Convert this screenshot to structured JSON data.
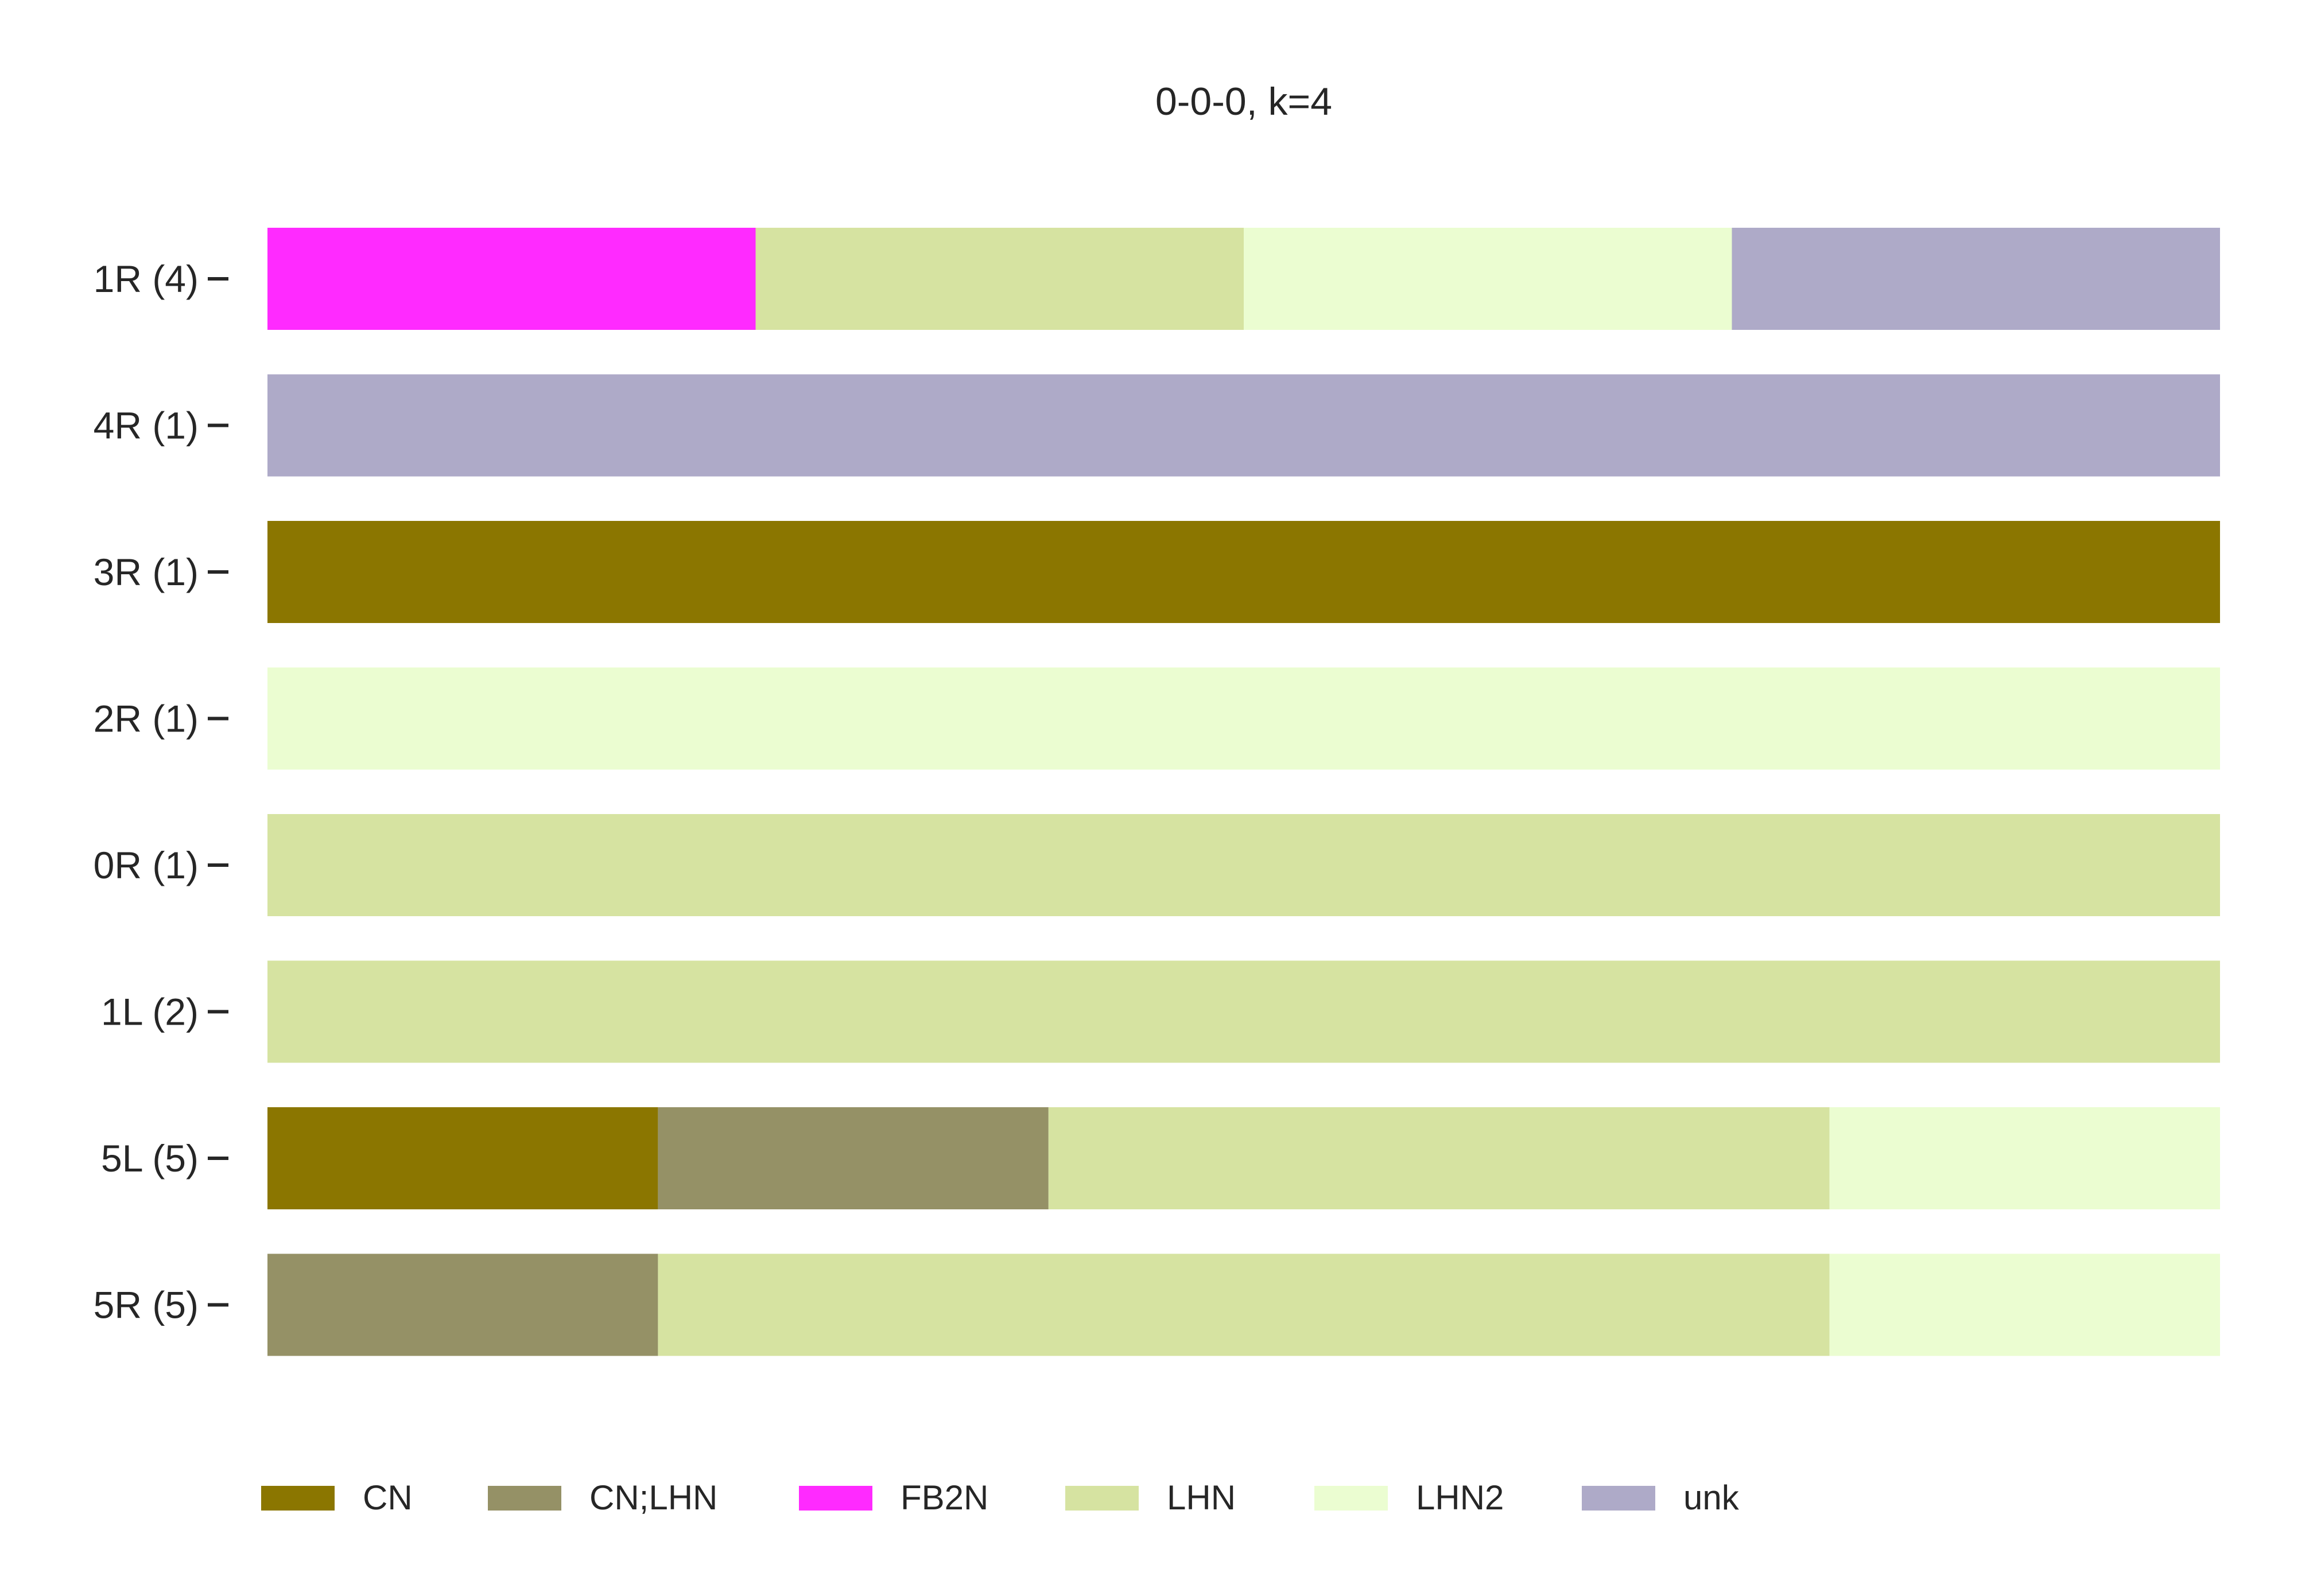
{
  "chart_data": {
    "type": "bar",
    "orientation": "horizontal",
    "stacked": true,
    "title": "0-0-0, k=4",
    "xlabel": "",
    "ylabel": "",
    "xlim": [
      0,
      1
    ],
    "grid": false,
    "legend_position": "bottom",
    "categories": [
      "1R (4)",
      "4R (1)",
      "3R (1)",
      "2R (1)",
      "0R (1)",
      "1L (2)",
      "5L (5)",
      "5R (5)"
    ],
    "series": [
      {
        "name": "CN",
        "color": "#8b7600",
        "values": [
          0,
          0,
          1,
          0,
          0,
          0,
          0.2,
          0
        ]
      },
      {
        "name": "CN;LHN",
        "color": "#959166",
        "values": [
          0,
          0,
          0,
          0,
          0,
          0,
          0.2,
          0.2
        ]
      },
      {
        "name": "FB2N",
        "color": "#ff2aff",
        "values": [
          0.25,
          0,
          0,
          0,
          0,
          0,
          0,
          0
        ]
      },
      {
        "name": "LHN",
        "color": "#d6e3a1",
        "values": [
          0.25,
          0,
          0,
          0,
          1,
          1,
          0.4,
          0.6
        ]
      },
      {
        "name": "LHN2",
        "color": "#ebfdd1",
        "values": [
          0.25,
          0,
          0,
          1,
          0,
          0,
          0.2,
          0.2
        ]
      },
      {
        "name": "unk",
        "color": "#aeaac8",
        "values": [
          0.25,
          1,
          0,
          0,
          0,
          0,
          0,
          0
        ]
      }
    ]
  }
}
